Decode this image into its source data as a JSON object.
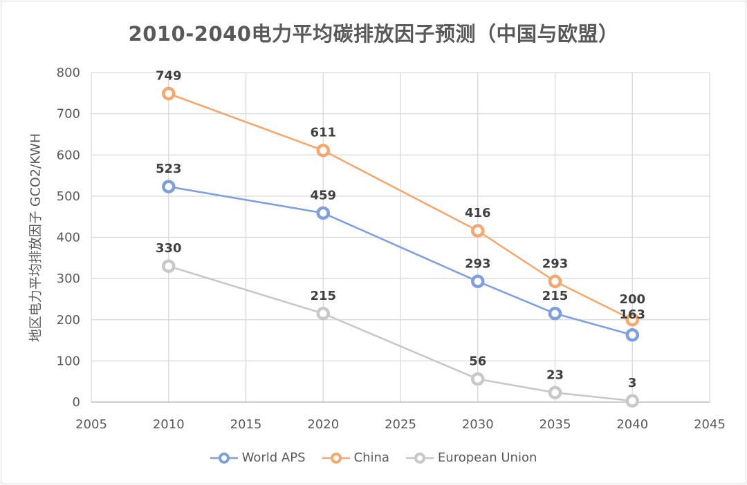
{
  "chart_data": {
    "type": "line",
    "title": "2010-2040电力平均碳排放因子预测（中国与欧盟）",
    "xlabel": "",
    "ylabel": "地区电力平均排放因子 GCO2/KWH",
    "xlim": [
      2005,
      2045
    ],
    "ylim": [
      0,
      800
    ],
    "xticks": [
      2005,
      2010,
      2015,
      2020,
      2025,
      2030,
      2035,
      2040,
      2045
    ],
    "yticks": [
      0,
      100,
      200,
      300,
      400,
      500,
      600,
      700,
      800
    ],
    "grid": true,
    "legend_position": "bottom",
    "x": [
      2010,
      2020,
      2030,
      2035,
      2040
    ],
    "series": [
      {
        "name": "World APS",
        "color": "#7f9fdc",
        "values": [
          523,
          459,
          293,
          215,
          163
        ]
      },
      {
        "name": "China",
        "color": "#f4a870",
        "values": [
          749,
          611,
          416,
          293,
          200
        ]
      },
      {
        "name": "European Union",
        "color": "#c8c8c8",
        "values": [
          330,
          215,
          56,
          23,
          3
        ]
      }
    ]
  }
}
